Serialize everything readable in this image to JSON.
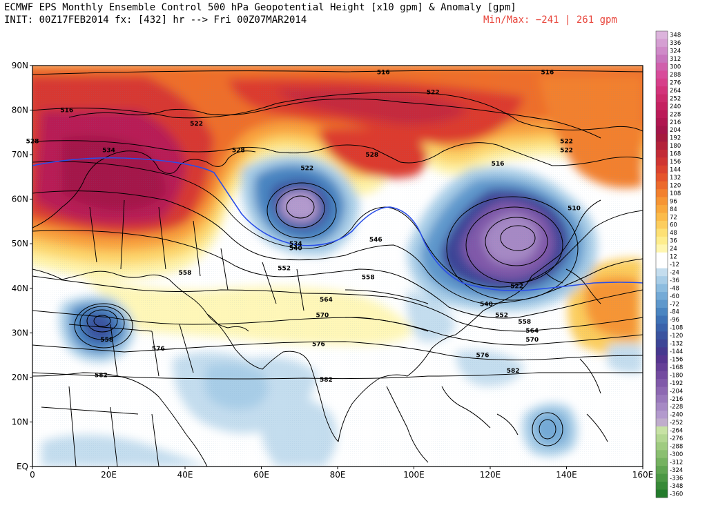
{
  "header": {
    "line1": "ECMWF EPS Monthly Ensemble Control 500 hPa Geopotential Height [x10 gpm] & Anomaly [gpm]",
    "line2": "INIT: 00Z17FEB2014 fx: [432] hr --> Fri 00Z07MAR2014",
    "minmax": "Min/Max:  −241 |  261 gpm"
  },
  "map": {
    "lon_range": [
      0,
      160
    ],
    "lat_range": [
      0,
      90
    ],
    "lon_ticks": [
      "0",
      "20E",
      "40E",
      "60E",
      "80E",
      "100E",
      "120E",
      "140E",
      "160E"
    ],
    "lat_ticks": [
      "EQ",
      "10N",
      "20N",
      "30N",
      "40N",
      "50N",
      "60N",
      "70N",
      "80N",
      "90N"
    ],
    "contour_labels": [
      {
        "text": "516",
        "lon": 92,
        "lat": 88.5
      },
      {
        "text": "516",
        "lon": 135,
        "lat": 88.5
      },
      {
        "text": "522",
        "lon": 105,
        "lat": 84
      },
      {
        "text": "516",
        "lon": 9,
        "lat": 80
      },
      {
        "text": "522",
        "lon": 43,
        "lat": 77
      },
      {
        "text": "528",
        "lon": 0,
        "lat": 73
      },
      {
        "text": "534",
        "lon": 20,
        "lat": 71
      },
      {
        "text": "528",
        "lon": 54,
        "lat": 71
      },
      {
        "text": "528",
        "lon": 89,
        "lat": 70
      },
      {
        "text": "522",
        "lon": 72,
        "lat": 67
      },
      {
        "text": "516",
        "lon": 122,
        "lat": 68
      },
      {
        "text": "522",
        "lon": 140,
        "lat": 73
      },
      {
        "text": "522",
        "lon": 140,
        "lat": 71
      },
      {
        "text": "510",
        "lon": 142,
        "lat": 58
      },
      {
        "text": "534",
        "lon": 69,
        "lat": 50
      },
      {
        "text": "540",
        "lon": 69,
        "lat": 49
      },
      {
        "text": "546",
        "lon": 90,
        "lat": 51
      },
      {
        "text": "552",
        "lon": 66,
        "lat": 44.5
      },
      {
        "text": "558",
        "lon": 40,
        "lat": 43.5
      },
      {
        "text": "558",
        "lon": 88,
        "lat": 42.5
      },
      {
        "text": "564",
        "lon": 77,
        "lat": 37.5
      },
      {
        "text": "570",
        "lon": 76,
        "lat": 34
      },
      {
        "text": "576",
        "lon": 75,
        "lat": 27.5
      },
      {
        "text": "576",
        "lon": 33,
        "lat": 26.5
      },
      {
        "text": "582",
        "lon": 18,
        "lat": 20.5
      },
      {
        "text": "582",
        "lon": 77,
        "lat": 19.5
      },
      {
        "text": "582",
        "lon": 126,
        "lat": 21.5
      },
      {
        "text": "576",
        "lon": 118,
        "lat": 25
      },
      {
        "text": "570",
        "lon": 131,
        "lat": 28.5
      },
      {
        "text": "564",
        "lon": 131,
        "lat": 30.5
      },
      {
        "text": "558",
        "lon": 129,
        "lat": 32.5
      },
      {
        "text": "552",
        "lon": 123,
        "lat": 34
      },
      {
        "text": "540",
        "lon": 119,
        "lat": 36.5
      },
      {
        "text": "522",
        "lon": 127,
        "lat": 40.5
      },
      {
        "text": "558",
        "lon": 19.5,
        "lat": 28.5
      }
    ]
  },
  "colorbar": {
    "labels": [
      "348",
      "336",
      "324",
      "312",
      "300",
      "288",
      "276",
      "264",
      "252",
      "240",
      "228",
      "216",
      "204",
      "192",
      "180",
      "168",
      "156",
      "144",
      "132",
      "120",
      "108",
      "96",
      "84",
      "72",
      "60",
      "48",
      "36",
      "24",
      "12",
      "-12",
      "-24",
      "-36",
      "-48",
      "-60",
      "-72",
      "-84",
      "-96",
      "-108",
      "-120",
      "-132",
      "-144",
      "-156",
      "-168",
      "-180",
      "-192",
      "-204",
      "-216",
      "-228",
      "-240",
      "-252",
      "-264",
      "-276",
      "-288",
      "-300",
      "-312",
      "-324",
      "-336",
      "-348",
      "-360"
    ],
    "colors": [
      "#dcb4dc",
      "#d59fd2",
      "#cf8ac8",
      "#c875bd",
      "#d060ac",
      "#d84c9a",
      "#d73f8a",
      "#d3337a",
      "#cc2a6c",
      "#c42161",
      "#bb1a58",
      "#b01650",
      "#a4154a",
      "#a51a3e",
      "#b3223a",
      "#c22b36",
      "#cf3532",
      "#db432e",
      "#e5542b",
      "#ec6a2c",
      "#f2802e",
      "#f69534",
      "#f9a83c",
      "#fbbb4a",
      "#fccd5d",
      "#fde074",
      "#feed8d",
      "#fff6b0",
      "#ffffff",
      "#ffffff",
      "#c4ddee",
      "#a8cde7",
      "#8cbcdf",
      "#74aad6",
      "#5e98cc",
      "#4a85c1",
      "#3e72b6",
      "#3a62ab",
      "#3a539f",
      "#3c4596",
      "#45388f",
      "#563590",
      "#653f97",
      "#734ba0",
      "#8059a9",
      "#8d68b2",
      "#9978bb",
      "#a689c4",
      "#b39acd",
      "#c0adcc",
      "#c7e2a4",
      "#b3d792",
      "#9fcb80",
      "#8abf70",
      "#75b260",
      "#60a552",
      "#4b9744",
      "#378937",
      "#237b2b"
    ]
  }
}
